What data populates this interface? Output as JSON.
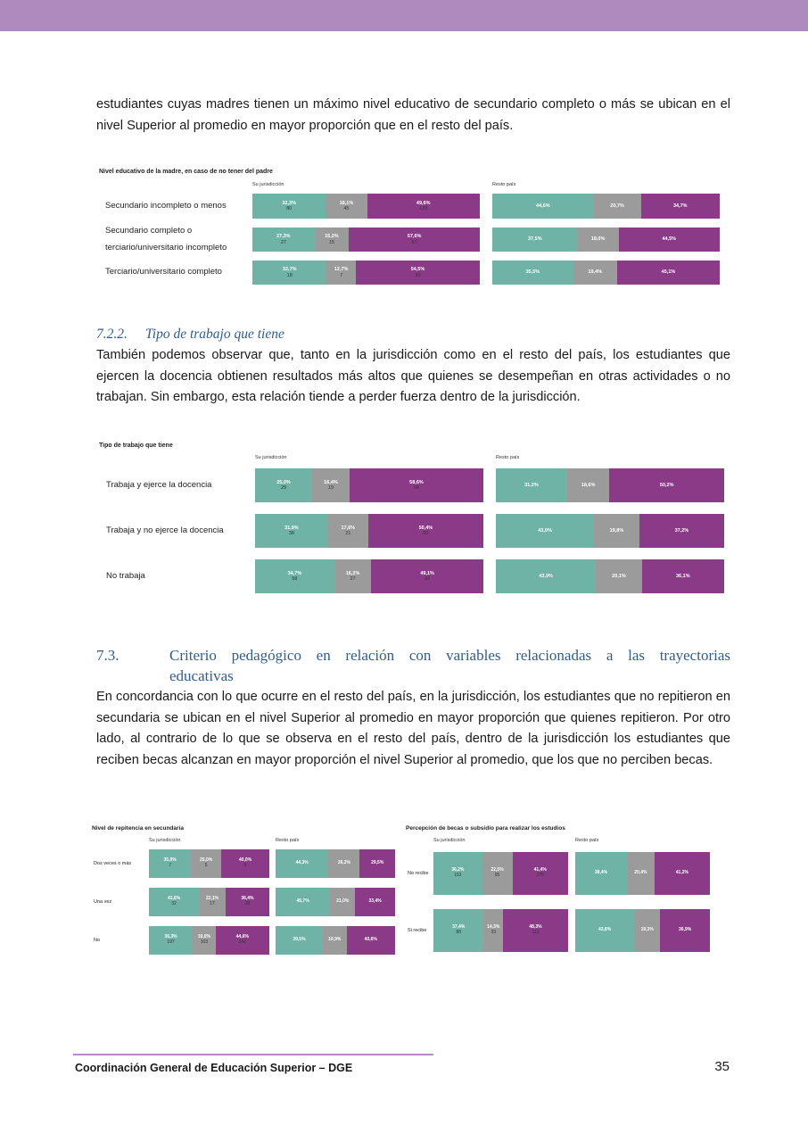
{
  "paragraphs": {
    "p1": "estudiantes cuyas madres tienen un máximo nivel educativo de secundario completo o más se ubican en el nivel Superior al promedio en mayor proporción que en el resto del país.",
    "p2": "También podemos observar que, tanto en la jurisdicción como en el resto del país, los estudiantes que ejercen la docencia obtienen resultados más altos que quienes se desempeñan en otras actividades o no trabajan. Sin embargo, esta relación tiende a perder fuerza dentro de la jurisdicción.",
    "p3": "En concordancia con lo que ocurre en el resto del país, en la jurisdicción, los estudiantes que no repitieron en secundaria se ubican en el nivel Superior al promedio en mayor proporción que quienes repitieron. Por otro lado, al contrario de lo que se observa en el resto del país, dentro de la jurisdicción los estudiantes que reciben becas alcanzan en mayor proporción el nivel Superior al promedio, que los que no perciben becas."
  },
  "headings": {
    "h722_num": "7.2.2.",
    "h722_text": "Tipo de trabajo que tiene",
    "h73_num": "7.3.",
    "h73_line1": "Criterio pedagógico en relación con variables relacionadas a las trayectorias",
    "h73_line2": "educativas"
  },
  "footer": {
    "text": "Coordinación General de Educación Superior – DGE",
    "page": "35"
  },
  "colors": {
    "teal": "#6fb3a6",
    "grey": "#9b9b9b",
    "purple": "#8b3a87",
    "header": "#ad8bbf"
  },
  "chart_data": [
    {
      "type": "bar",
      "stacked": "100%",
      "title": "Nivel educativo de la madre, en caso de no tener del padre",
      "panels": [
        "Su jurisdicción",
        "Resto país"
      ],
      "categories": [
        "Secundario incompleto o menos",
        "Secundario completo o terciario/universitario incompleto",
        "Terciario/universitario completo"
      ],
      "jurisdiccion": [
        {
          "pct": [
            "32,3%",
            "18,1%",
            "49,6%"
          ],
          "values": [
            32.3,
            18.1,
            49.6
          ],
          "counts": [
            "80",
            "45",
            "123"
          ]
        },
        {
          "pct": [
            "27,3%",
            "15,2%",
            "57,6%"
          ],
          "values": [
            27.3,
            15.2,
            57.6
          ],
          "counts": [
            "27",
            "15",
            "57"
          ]
        },
        {
          "pct": [
            "32,7%",
            "12,7%",
            "54,5%"
          ],
          "values": [
            32.7,
            12.7,
            54.5
          ],
          "counts": [
            "18",
            "7",
            "30"
          ]
        }
      ],
      "resto": [
        {
          "pct": [
            "44,6%",
            "20,7%",
            "34,7%"
          ],
          "values": [
            44.6,
            20.7,
            34.7
          ]
        },
        {
          "pct": [
            "37,5%",
            "18,0%",
            "44,5%"
          ],
          "values": [
            37.5,
            18.0,
            44.5
          ]
        },
        {
          "pct": [
            "35,5%",
            "19,4%",
            "45,1%"
          ],
          "values": [
            35.5,
            19.4,
            45.1
          ]
        }
      ]
    },
    {
      "type": "bar",
      "stacked": "100%",
      "title": "Tipo de trabajo que tiene",
      "panels": [
        "Su jurisdicción",
        "Resto país"
      ],
      "categories": [
        "Trabaja y ejerce la docencia",
        "Trabaja y no ejerce la docencia",
        "No trabaja"
      ],
      "jurisdiccion": [
        {
          "pct": [
            "25,0%",
            "16,4%",
            "58,6%"
          ],
          "values": [
            25.0,
            16.4,
            58.6
          ],
          "counts": [
            "29",
            "19",
            "68"
          ]
        },
        {
          "pct": [
            "31,9%",
            "17,6%",
            "50,4%"
          ],
          "values": [
            31.9,
            17.6,
            50.4
          ],
          "counts": [
            "38",
            "21",
            "60"
          ]
        },
        {
          "pct": [
            "34,7%",
            "16,2%",
            "49,1%"
          ],
          "values": [
            34.7,
            16.2,
            49.1
          ],
          "counts": [
            "58",
            "27",
            "82"
          ]
        }
      ],
      "resto": [
        {
          "pct": [
            "31,2%",
            "18,6%",
            "50,2%"
          ],
          "values": [
            31.2,
            18.6,
            50.2
          ]
        },
        {
          "pct": [
            "43,0%",
            "19,8%",
            "37,2%"
          ],
          "values": [
            43.0,
            19.8,
            37.2
          ]
        },
        {
          "pct": [
            "43,9%",
            "20,1%",
            "36,1%"
          ],
          "values": [
            43.9,
            20.1,
            36.1
          ]
        }
      ]
    },
    {
      "type": "bar",
      "stacked": "100%",
      "title": "Nivel de repitencia en secundaria",
      "panels": [
        "Su jurisdicción",
        "Resto país"
      ],
      "categories": [
        "Dos veces o más",
        "Una vez",
        "No"
      ],
      "jurisdiccion": [
        {
          "pct": [
            "35,0%",
            "25,0%",
            "40,0%"
          ],
          "values": [
            35.0,
            25.0,
            40.0
          ],
          "counts": [
            "7",
            "5",
            "8"
          ]
        },
        {
          "pct": [
            "41,6%",
            "22,1%",
            "36,4%"
          ],
          "values": [
            41.6,
            22.1,
            36.4
          ],
          "counts": [
            "32",
            "17",
            "28"
          ]
        },
        {
          "pct": [
            "36,3%",
            "19,0%",
            "44,6%"
          ],
          "values": [
            36.3,
            19.0,
            44.6
          ],
          "counts": [
            "197",
            "103",
            "242"
          ]
        }
      ],
      "resto": [
        {
          "pct": [
            "44,3%",
            "26,2%",
            "29,5%"
          ],
          "values": [
            44.3,
            26.2,
            29.5
          ]
        },
        {
          "pct": [
            "45,7%",
            "21,0%",
            "33,4%"
          ],
          "values": [
            45.7,
            21.0,
            33.4
          ]
        },
        {
          "pct": [
            "39,5%",
            "19,9%",
            "40,6%"
          ],
          "values": [
            39.5,
            19.9,
            40.6
          ]
        }
      ]
    },
    {
      "type": "bar",
      "stacked": "100%",
      "title": "Percepción de becas o subsidio para realizar los estudios",
      "panels": [
        "Su jurisdicción",
        "Resto país"
      ],
      "categories": [
        "No recibe",
        "Si recibe"
      ],
      "jurisdiccion": [
        {
          "pct": [
            "36,2%",
            "22,5%",
            "41,4%"
          ],
          "values": [
            36.2,
            22.5,
            41.4
          ],
          "counts": [
            "153",
            "95",
            "175"
          ]
        },
        {
          "pct": [
            "37,4%",
            "14,3%",
            "48,3%"
          ],
          "values": [
            37.4,
            14.3,
            48.3
          ],
          "counts": [
            "88",
            "33",
            "113"
          ]
        }
      ],
      "resto": [
        {
          "pct": [
            "38,4%",
            "20,4%",
            "41,2%"
          ],
          "values": [
            38.4,
            20.4,
            41.2
          ]
        },
        {
          "pct": [
            "43,8%",
            "19,3%",
            "36,9%"
          ],
          "values": [
            43.8,
            19.3,
            36.9
          ]
        }
      ]
    }
  ]
}
